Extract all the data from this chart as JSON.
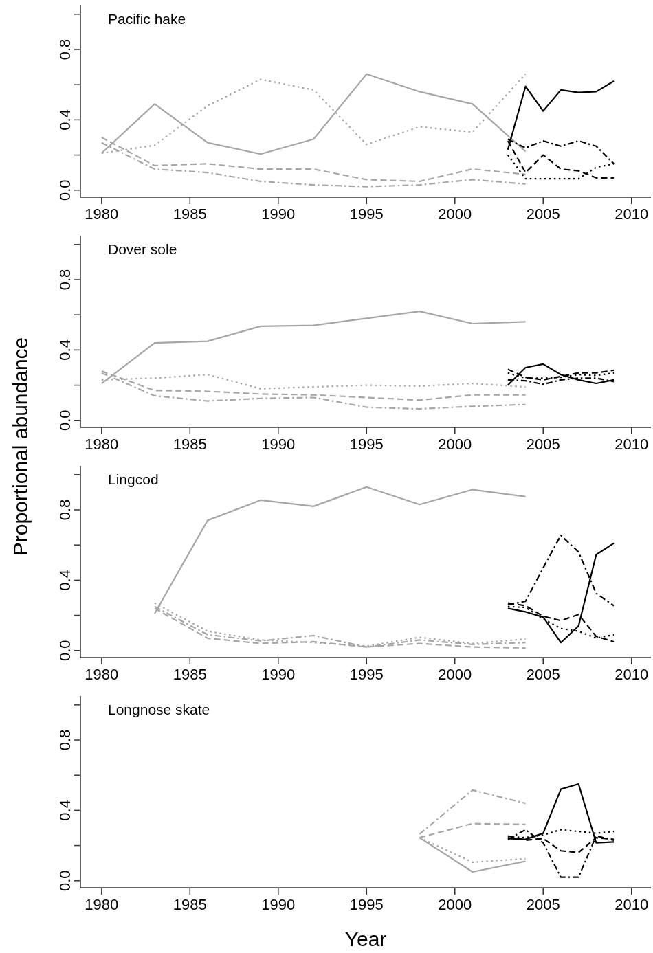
{
  "chart_data": [
    {
      "type": "line",
      "title": "Pacific hake",
      "legend": false,
      "xlim": [
        1978.8,
        2011.1
      ],
      "xticks": [
        1980,
        1985,
        1990,
        1995,
        2000,
        2005,
        2010
      ],
      "ylim": [
        -0.04,
        1.05
      ],
      "yticks": [
        {
          "value": 0,
          "label": "0.0"
        },
        {
          "value": 0.2,
          "label": null
        },
        {
          "value": 0.4,
          "label": "0.4"
        },
        {
          "value": 0.6,
          "label": null
        },
        {
          "value": 0.8,
          "label": "0.8"
        },
        {
          "value": 1.0,
          "label": null
        }
      ],
      "grid": false,
      "series": [
        {
          "color": "#a6a6a6",
          "line_style": "solid",
          "x": [
            1980,
            1983,
            1986,
            1989,
            1992,
            1995,
            1998,
            2001,
            2004
          ],
          "values": [
            0.21,
            0.49,
            0.27,
            0.205,
            0.29,
            0.66,
            0.56,
            0.49,
            0.22
          ]
        },
        {
          "color": "#a6a6a6",
          "line_style": "dotted",
          "x": [
            1980,
            1983,
            1986,
            1989,
            1992,
            1995,
            1998,
            2001,
            2004
          ],
          "values": [
            0.21,
            0.255,
            0.48,
            0.63,
            0.57,
            0.26,
            0.36,
            0.33,
            0.66
          ]
        },
        {
          "color": "#a6a6a6",
          "line_style": "dashed",
          "x": [
            1980,
            1983,
            1986,
            1989,
            1992,
            1995,
            1998,
            2001,
            2004
          ],
          "values": [
            0.3,
            0.14,
            0.15,
            0.12,
            0.12,
            0.06,
            0.05,
            0.12,
            0.09
          ]
        },
        {
          "color": "#a6a6a6",
          "line_style": "dashdot",
          "x": [
            1980,
            1983,
            1986,
            1989,
            1992,
            1995,
            1998,
            2001,
            2004
          ],
          "values": [
            0.27,
            0.12,
            0.1,
            0.05,
            0.03,
            0.02,
            0.03,
            0.06,
            0.035
          ]
        },
        {
          "color": "#000000",
          "line_style": "solid",
          "x": [
            2003,
            2004,
            2005,
            2006,
            2007,
            2008,
            2009
          ],
          "values": [
            0.23,
            0.59,
            0.45,
            0.57,
            0.555,
            0.56,
            0.62
          ]
        },
        {
          "color": "#000000",
          "line_style": "dotted",
          "x": [
            2003,
            2004,
            2005,
            2006,
            2007,
            2008,
            2009
          ],
          "values": [
            0.2,
            0.065,
            0.065,
            0.065,
            0.065,
            0.13,
            0.15
          ]
        },
        {
          "color": "#000000",
          "line_style": "dashed",
          "x": [
            2003,
            2004,
            2005,
            2006,
            2007,
            2008,
            2009
          ],
          "values": [
            0.28,
            0.1,
            0.2,
            0.12,
            0.11,
            0.07,
            0.07
          ]
        },
        {
          "color": "#000000",
          "line_style": "dashdot",
          "x": [
            2003,
            2004,
            2005,
            2006,
            2007,
            2008,
            2009
          ],
          "values": [
            0.29,
            0.24,
            0.28,
            0.25,
            0.28,
            0.25,
            0.15
          ]
        }
      ]
    },
    {
      "type": "line",
      "title": "Dover sole",
      "legend": false,
      "ylabel": "Proportional abundance",
      "xlim": [
        1978.8,
        2011.1
      ],
      "xticks": [
        1980,
        1985,
        1990,
        1995,
        2000,
        2005,
        2010
      ],
      "ylim": [
        -0.04,
        1.05
      ],
      "yticks": [
        {
          "value": 0,
          "label": "0.0"
        },
        {
          "value": 0.2,
          "label": null
        },
        {
          "value": 0.4,
          "label": "0.4"
        },
        {
          "value": 0.6,
          "label": null
        },
        {
          "value": 0.8,
          "label": "0.8"
        },
        {
          "value": 1.0,
          "label": null
        }
      ],
      "grid": false,
      "series": [
        {
          "color": "#a6a6a6",
          "line_style": "solid",
          "x": [
            1980,
            1983,
            1986,
            1989,
            1992,
            1995,
            1998,
            2001,
            2004
          ],
          "values": [
            0.21,
            0.44,
            0.45,
            0.535,
            0.54,
            0.58,
            0.62,
            0.55,
            0.56
          ]
        },
        {
          "color": "#a6a6a6",
          "line_style": "dotted",
          "x": [
            1980,
            1983,
            1986,
            1989,
            1992,
            1995,
            1998,
            2001,
            2004
          ],
          "values": [
            0.23,
            0.24,
            0.26,
            0.18,
            0.19,
            0.2,
            0.195,
            0.21,
            0.19
          ]
        },
        {
          "color": "#a6a6a6",
          "line_style": "dashed",
          "x": [
            1980,
            1983,
            1986,
            1989,
            1992,
            1995,
            1998,
            2001,
            2004
          ],
          "values": [
            0.28,
            0.17,
            0.165,
            0.15,
            0.145,
            0.13,
            0.115,
            0.145,
            0.145
          ]
        },
        {
          "color": "#a6a6a6",
          "line_style": "dashdot",
          "x": [
            1980,
            1983,
            1986,
            1989,
            1992,
            1995,
            1998,
            2001,
            2004
          ],
          "values": [
            0.27,
            0.14,
            0.11,
            0.125,
            0.13,
            0.075,
            0.065,
            0.08,
            0.09
          ]
        },
        {
          "color": "#000000",
          "line_style": "solid",
          "x": [
            2003,
            2004,
            2005,
            2006,
            2007,
            2008,
            2009
          ],
          "values": [
            0.2,
            0.3,
            0.32,
            0.26,
            0.23,
            0.21,
            0.23
          ]
        },
        {
          "color": "#000000",
          "line_style": "dotted",
          "x": [
            2003,
            2004,
            2005,
            2006,
            2007,
            2008,
            2009
          ],
          "values": [
            0.27,
            0.24,
            0.24,
            0.245,
            0.26,
            0.255,
            0.27
          ]
        },
        {
          "color": "#000000",
          "line_style": "dashed",
          "x": [
            2003,
            2004,
            2005,
            2006,
            2007,
            2008,
            2009
          ],
          "values": [
            0.29,
            0.245,
            0.23,
            0.25,
            0.27,
            0.27,
            0.285
          ]
        },
        {
          "color": "#000000",
          "line_style": "dashdot",
          "x": [
            2003,
            2004,
            2005,
            2006,
            2007,
            2008,
            2009
          ],
          "values": [
            0.23,
            0.225,
            0.205,
            0.23,
            0.24,
            0.24,
            0.22
          ]
        }
      ]
    },
    {
      "type": "line",
      "title": "Lingcod",
      "legend": false,
      "xlim": [
        1978.8,
        2011.1
      ],
      "xticks": [
        1980,
        1985,
        1990,
        1995,
        2000,
        2005,
        2010
      ],
      "ylim": [
        -0.04,
        1.05
      ],
      "yticks": [
        {
          "value": 0,
          "label": "0.0"
        },
        {
          "value": 0.2,
          "label": null
        },
        {
          "value": 0.4,
          "label": "0.4"
        },
        {
          "value": 0.6,
          "label": null
        },
        {
          "value": 0.8,
          "label": "0.8"
        },
        {
          "value": 1.0,
          "label": null
        }
      ],
      "grid": false,
      "series": [
        {
          "color": "#a6a6a6",
          "line_style": "solid",
          "x": [
            1983,
            1986,
            1989,
            1992,
            1995,
            1998,
            2001,
            2004
          ],
          "values": [
            0.21,
            0.74,
            0.855,
            0.82,
            0.93,
            0.83,
            0.915,
            0.875
          ]
        },
        {
          "color": "#a6a6a6",
          "line_style": "dotted",
          "x": [
            1983,
            1986,
            1989,
            1992,
            1995,
            1998,
            2001,
            2004
          ],
          "values": [
            0.27,
            0.11,
            0.06,
            0.045,
            0.025,
            0.075,
            0.04,
            0.065
          ]
        },
        {
          "color": "#a6a6a6",
          "line_style": "dashed",
          "x": [
            1983,
            1986,
            1989,
            1992,
            1995,
            1998,
            2001,
            2004
          ],
          "values": [
            0.24,
            0.07,
            0.04,
            0.05,
            0.02,
            0.04,
            0.02,
            0.015
          ]
        },
        {
          "color": "#a6a6a6",
          "line_style": "dashdot",
          "x": [
            1983,
            1986,
            1989,
            1992,
            1995,
            1998,
            2001,
            2004
          ],
          "values": [
            0.25,
            0.09,
            0.055,
            0.085,
            0.02,
            0.06,
            0.035,
            0.045
          ]
        },
        {
          "color": "#000000",
          "line_style": "solid",
          "x": [
            2003,
            2004,
            2005,
            2006,
            2007,
            2008,
            2009
          ],
          "values": [
            0.24,
            0.22,
            0.19,
            0.045,
            0.14,
            0.545,
            0.61
          ]
        },
        {
          "color": "#000000",
          "line_style": "dotted",
          "x": [
            2003,
            2004,
            2005,
            2006,
            2007,
            2008,
            2009
          ],
          "values": [
            0.25,
            0.245,
            0.18,
            0.125,
            0.11,
            0.07,
            0.09
          ]
        },
        {
          "color": "#000000",
          "line_style": "dashed",
          "x": [
            2003,
            2004,
            2005,
            2006,
            2007,
            2008,
            2009
          ],
          "values": [
            0.27,
            0.255,
            0.195,
            0.17,
            0.205,
            0.08,
            0.05
          ]
        },
        {
          "color": "#000000",
          "line_style": "dashdot",
          "x": [
            2003,
            2004,
            2005,
            2006,
            2007,
            2008,
            2009
          ],
          "values": [
            0.26,
            0.28,
            0.47,
            0.655,
            0.56,
            0.325,
            0.255
          ]
        }
      ]
    },
    {
      "type": "line",
      "title": "Longnose skate",
      "legend": false,
      "xlabel": "Year",
      "xlim": [
        1978.8,
        2011.1
      ],
      "xticks": [
        1980,
        1985,
        1990,
        1995,
        2000,
        2005,
        2010
      ],
      "ylim": [
        -0.04,
        1.05
      ],
      "yticks": [
        {
          "value": 0,
          "label": "0.0"
        },
        {
          "value": 0.2,
          "label": null
        },
        {
          "value": 0.4,
          "label": "0.4"
        },
        {
          "value": 0.6,
          "label": null
        },
        {
          "value": 0.8,
          "label": "0.8"
        },
        {
          "value": 1.0,
          "label": null
        }
      ],
      "grid": false,
      "series": [
        {
          "color": "#a6a6a6",
          "line_style": "solid",
          "x": [
            1998,
            2001,
            2004
          ],
          "values": [
            0.245,
            0.05,
            0.11
          ]
        },
        {
          "color": "#a6a6a6",
          "line_style": "dotted",
          "x": [
            1998,
            2001,
            2004
          ],
          "values": [
            0.245,
            0.105,
            0.125
          ]
        },
        {
          "color": "#a6a6a6",
          "line_style": "dashed",
          "x": [
            1998,
            2001,
            2004
          ],
          "values": [
            0.245,
            0.325,
            0.32
          ]
        },
        {
          "color": "#a6a6a6",
          "line_style": "dashdot",
          "x": [
            1998,
            2001,
            2004
          ],
          "values": [
            0.265,
            0.515,
            0.44
          ]
        },
        {
          "color": "#000000",
          "line_style": "solid",
          "x": [
            2003,
            2004,
            2005,
            2006,
            2007,
            2008,
            2009
          ],
          "values": [
            0.24,
            0.235,
            0.27,
            0.52,
            0.55,
            0.215,
            0.22
          ]
        },
        {
          "color": "#000000",
          "line_style": "dotted",
          "x": [
            2003,
            2004,
            2005,
            2006,
            2007,
            2008,
            2009
          ],
          "values": [
            0.25,
            0.245,
            0.26,
            0.29,
            0.28,
            0.27,
            0.28
          ]
        },
        {
          "color": "#000000",
          "line_style": "dashed",
          "x": [
            2003,
            2004,
            2005,
            2006,
            2007,
            2008,
            2009
          ],
          "values": [
            0.255,
            0.23,
            0.24,
            0.17,
            0.16,
            0.245,
            0.235
          ]
        },
        {
          "color": "#000000",
          "line_style": "dashdot",
          "x": [
            2003,
            2004,
            2005,
            2006,
            2007,
            2008,
            2009
          ],
          "values": [
            0.235,
            0.29,
            0.215,
            0.02,
            0.02,
            0.255,
            0.23
          ]
        }
      ]
    }
  ]
}
